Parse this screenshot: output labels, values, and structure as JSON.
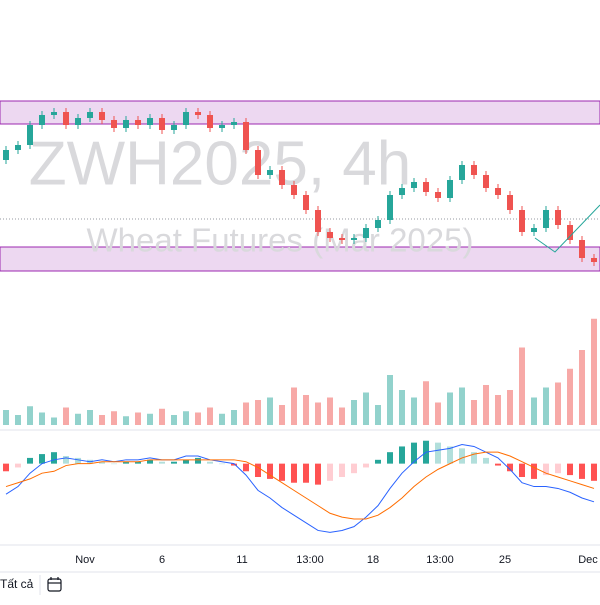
{
  "chart_data": {
    "type": "candlestick",
    "watermark_title": "ZWH2025, 4h",
    "watermark_subtitle": "Wheat Futures (Mar 2025)",
    "x_labels": [
      "Nov",
      "6",
      "11",
      "13:00",
      "18",
      "13:00",
      "25",
      "Dec"
    ],
    "ylim": [
      522,
      580
    ],
    "zones": [
      {
        "from": 555.2,
        "to": 559.8
      },
      {
        "from": 525.8,
        "to": 530.6
      }
    ],
    "zone_color": "#e1bee7",
    "price_line": 536.2,
    "up_color": "#26a69a",
    "down_color": "#ef5350",
    "open": [
      548,
      550,
      551,
      555,
      557,
      557.6,
      555,
      556.4,
      557.6,
      556,
      554.4,
      556,
      555,
      556.4,
      554,
      555,
      557.6,
      557,
      554.4,
      555,
      555.6,
      550,
      545,
      546,
      543,
      541,
      538,
      533.6,
      532.4,
      532,
      532.4,
      534.4,
      536,
      541,
      542.4,
      543.6,
      541.6,
      540.4,
      544,
      547,
      545,
      542.4,
      541,
      538,
      533.6,
      534.4,
      538,
      535,
      532,
      528.4
    ],
    "high": [
      550.8,
      551.8,
      555.8,
      557.8,
      558.4,
      558.4,
      557.2,
      558.4,
      558.4,
      556.8,
      556.8,
      556.8,
      557.2,
      557.2,
      555.8,
      558.4,
      558.4,
      557.8,
      555.8,
      556.4,
      556.4,
      550.8,
      546.8,
      546.8,
      543.8,
      541.8,
      538.8,
      534.4,
      533.2,
      533.2,
      535.2,
      536.8,
      541.8,
      543.2,
      544.4,
      544.4,
      542.4,
      544.8,
      547.8,
      547.8,
      545.8,
      543.2,
      541.8,
      538.8,
      535.2,
      538.8,
      538.8,
      535.8,
      532.8,
      529.2
    ],
    "low": [
      547.2,
      549.2,
      550.2,
      554.2,
      556.2,
      554.2,
      554.2,
      555.6,
      555.2,
      553.6,
      553.6,
      554.2,
      554.2,
      553.2,
      553.2,
      554.2,
      556.2,
      553.6,
      553.6,
      554.2,
      549.2,
      544.2,
      544.2,
      542.2,
      540.2,
      537.2,
      532.8,
      531.6,
      531.2,
      531.2,
      531.6,
      533.6,
      535.2,
      540.2,
      541.6,
      540.8,
      539.6,
      539.6,
      543.2,
      544.2,
      541.6,
      540.2,
      537.2,
      532.8,
      532.8,
      533.6,
      534.2,
      531.2,
      527.6,
      526.8
    ],
    "close": [
      550,
      551,
      555,
      557,
      557.6,
      555,
      556.4,
      557.6,
      556,
      554.4,
      556,
      555,
      556.4,
      554,
      555,
      557.6,
      557,
      554.4,
      555,
      555.6,
      550,
      545,
      546,
      543,
      541,
      538,
      533.6,
      532.4,
      532,
      532.4,
      534.4,
      536,
      541,
      542.4,
      543.6,
      541.6,
      540.4,
      544,
      547,
      545,
      542.4,
      541,
      538,
      533.6,
      534.4,
      538,
      535,
      532,
      528.4,
      527.6
    ],
    "volume": [
      12,
      8,
      15,
      10,
      6,
      14,
      9,
      12,
      8,
      11,
      7,
      10,
      9,
      13,
      8,
      11,
      10,
      14,
      9,
      12,
      18,
      20,
      22,
      16,
      30,
      24,
      18,
      22,
      14,
      20,
      26,
      16,
      40,
      28,
      22,
      35,
      18,
      26,
      30,
      20,
      32,
      24,
      28,
      62,
      22,
      30,
      34,
      45,
      60,
      85
    ],
    "vlim": [
      0,
      100
    ],
    "macd_lim": [
      -4,
      1.5
    ],
    "macd_hist": [
      -0.4,
      -0.2,
      0.3,
      0.5,
      0.6,
      0.4,
      0.3,
      0.2,
      0.1,
      0.0,
      0.1,
      0.1,
      0.2,
      0.1,
      0.1,
      0.2,
      0.3,
      0.1,
      0.0,
      -0.1,
      -0.4,
      -0.7,
      -0.8,
      -0.9,
      -1.0,
      -1.0,
      -1.1,
      -0.9,
      -0.7,
      -0.5,
      -0.2,
      0.2,
      0.6,
      0.9,
      1.1,
      1.2,
      1.1,
      0.9,
      0.8,
      0.6,
      0.3,
      -0.1,
      -0.4,
      -0.7,
      -0.8,
      -0.6,
      -0.5,
      -0.6,
      -0.8,
      -0.9
    ],
    "macd_line": {
      "color": "#2962ff",
      "values": [
        -1.6,
        -1.2,
        -0.5,
        0.0,
        0.2,
        0.3,
        0.2,
        0.1,
        0.2,
        0.1,
        0.2,
        0.2,
        0.3,
        0.2,
        0.2,
        0.4,
        0.4,
        0.2,
        0.1,
        0.0,
        -0.6,
        -1.4,
        -1.8,
        -2.3,
        -2.7,
        -3.1,
        -3.5,
        -3.6,
        -3.5,
        -3.3,
        -2.8,
        -2.2,
        -1.3,
        -0.5,
        0.1,
        0.6,
        0.7,
        0.8,
        1.0,
        0.9,
        0.6,
        0.3,
        -0.3,
        -1.0,
        -1.2,
        -1.2,
        -1.3,
        -1.5,
        -1.8,
        -2.0
      ]
    },
    "signal_line": {
      "color": "#ff6d00",
      "values": [
        -1.2,
        -1.0,
        -0.8,
        -0.5,
        -0.4,
        -0.1,
        0.0,
        0.0,
        0.1,
        0.1,
        0.1,
        0.1,
        0.2,
        0.2,
        0.2,
        0.2,
        0.2,
        0.2,
        0.2,
        0.2,
        0.1,
        -0.2,
        -0.6,
        -1.0,
        -1.4,
        -1.8,
        -2.2,
        -2.6,
        -2.8,
        -2.9,
        -2.9,
        -2.7,
        -2.3,
        -1.8,
        -1.2,
        -0.7,
        -0.3,
        0.0,
        0.3,
        0.5,
        0.6,
        0.6,
        0.4,
        0.1,
        -0.2,
        -0.5,
        -0.7,
        -0.9,
        -1.1,
        -1.3
      ]
    }
  },
  "toolbar": {
    "range_label": "Tất cả"
  }
}
